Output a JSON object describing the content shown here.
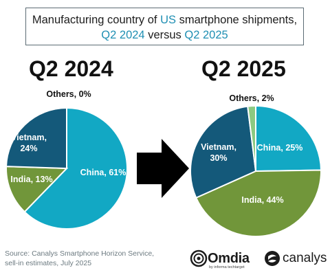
{
  "title": {
    "line1_prefix": "Manufacturing country of ",
    "line1_highlight": "US",
    "line1_suffix": " smartphone shipments,",
    "line2_a": "Q2 2024",
    "line2_mid": " versus ",
    "line2_b": "Q2 2025"
  },
  "colors": {
    "China": "#12a8c4",
    "India": "#71963a",
    "Vietnam": "#14597a",
    "Others": "#8cc981",
    "title_highlight": "#1f8fb3"
  },
  "chart_data": [
    {
      "type": "pie",
      "title": "Q2 2024",
      "slices": [
        {
          "label": "China",
          "value": 61,
          "text": "China, 61%"
        },
        {
          "label": "India",
          "value": 13,
          "text": "India, 13%"
        },
        {
          "label": "Vietnam",
          "value": 24,
          "text": "Vietnam,\n24%"
        },
        {
          "label": "Others",
          "value": 0,
          "text": "Others, 0%"
        }
      ]
    },
    {
      "type": "pie",
      "title": "Q2 2025",
      "slices": [
        {
          "label": "China",
          "value": 25,
          "text": "China, 25%"
        },
        {
          "label": "India",
          "value": 44,
          "text": "India, 44%"
        },
        {
          "label": "Vietnam",
          "value": 30,
          "text": "Vietnam,\n30%"
        },
        {
          "label": "Others",
          "value": 2,
          "text": "Others, 2%"
        }
      ]
    }
  ],
  "source": {
    "line1": "Source: Canalys Smartphone Horizon Service,",
    "line2": "sell-in estimates, July 2025"
  },
  "logos": {
    "omdia": "Omdia",
    "omdia_sub": "by informa techtarget",
    "canalys": "canalys"
  }
}
